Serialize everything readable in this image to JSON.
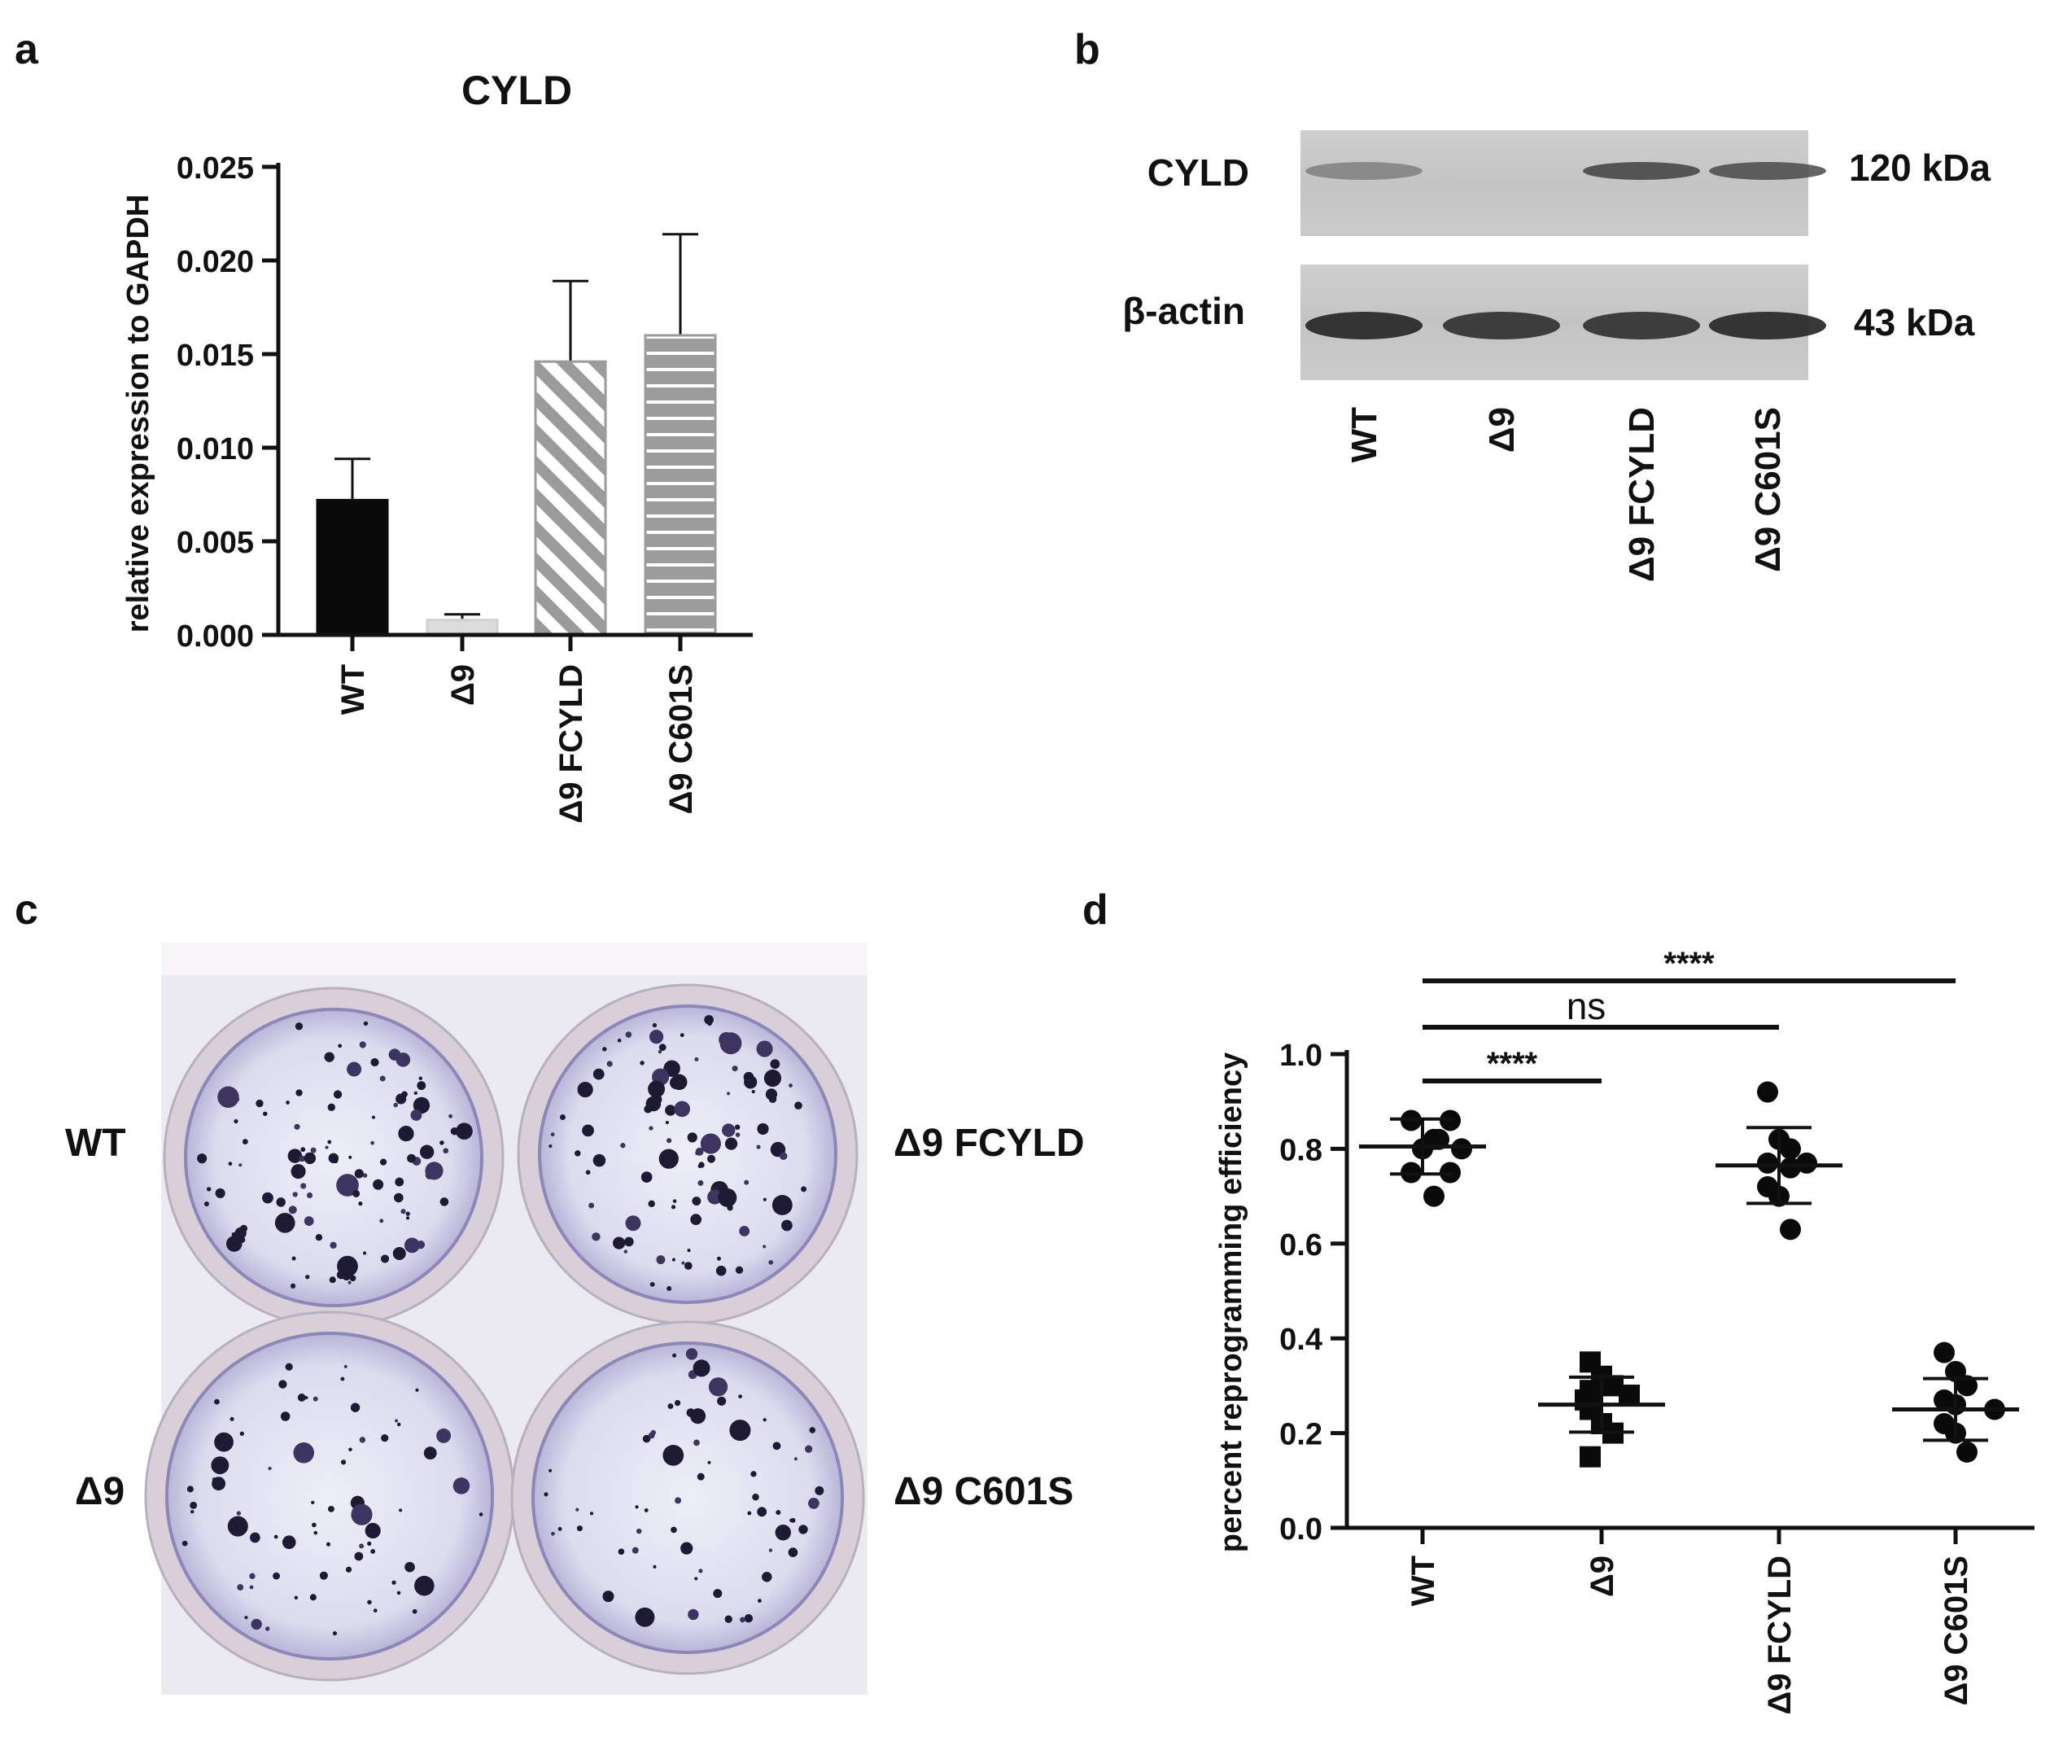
{
  "chart_data": [
    {
      "panel": "a",
      "type": "bar",
      "title": "CYLD",
      "ylabel": "relative expression to GAPDH",
      "xlabel": "",
      "categories": [
        "WT",
        "Δ9",
        "Δ9 FCYLD",
        "Δ9 C601S"
      ],
      "values": [
        0.0072,
        0.0008,
        0.0146,
        0.016
      ],
      "errors": [
        0.0022,
        0.0003,
        0.0043,
        0.0054
      ],
      "patterns": [
        "solid-black",
        "solid-lightgray",
        "diagonal-stripes",
        "horizontal-stripes"
      ],
      "ylim": [
        0,
        0.025
      ],
      "yticks": [
        "0.000",
        "0.005",
        "0.010",
        "0.015",
        "0.020",
        "0.025"
      ]
    },
    {
      "panel": "b",
      "type": "western-blot",
      "rows": [
        {
          "label": "CYLD",
          "size": "120 kDa",
          "intensity": [
            0.35,
            0.0,
            0.75,
            0.7
          ]
        },
        {
          "label": "β-actin",
          "size": "43 kDa",
          "intensity": [
            0.95,
            0.9,
            0.9,
            0.95
          ]
        }
      ],
      "lanes": [
        "WT",
        "Δ9",
        "Δ9 FCYLD",
        "Δ9 C601S"
      ]
    },
    {
      "panel": "c",
      "type": "image",
      "wells": [
        "WT",
        "Δ9 FCYLD",
        "Δ9",
        "Δ9 C601S"
      ]
    },
    {
      "panel": "d",
      "type": "scatter",
      "ylabel": "percent reprogramming efficiency",
      "xlabel": "",
      "categories": [
        "WT",
        "Δ9",
        "Δ9 FCYLD",
        "Δ9 C601S"
      ],
      "ylim": [
        0,
        1.0
      ],
      "yticks": [
        "0.0",
        "0.2",
        "0.4",
        "0.6",
        "0.8",
        "1.0"
      ],
      "groups": [
        {
          "name": "WT",
          "marker": "circle",
          "mean": 0.805,
          "sd": 0.058,
          "points": [
            0.86,
            0.86,
            0.82,
            0.82,
            0.8,
            0.8,
            0.75,
            0.75,
            0.7
          ]
        },
        {
          "name": "Δ9",
          "marker": "square",
          "mean": 0.26,
          "sd": 0.058,
          "points": [
            0.35,
            0.32,
            0.3,
            0.29,
            0.28,
            0.27,
            0.25,
            0.22,
            0.2,
            0.15
          ]
        },
        {
          "name": "Δ9 FCYLD",
          "marker": "circle",
          "mean": 0.765,
          "sd": 0.08,
          "points": [
            0.92,
            0.82,
            0.8,
            0.77,
            0.77,
            0.76,
            0.72,
            0.7,
            0.63
          ]
        },
        {
          "name": "Δ9 C601S",
          "marker": "circle",
          "mean": 0.25,
          "sd": 0.065,
          "points": [
            0.37,
            0.33,
            0.3,
            0.27,
            0.26,
            0.25,
            0.22,
            0.2,
            0.16
          ]
        }
      ],
      "significance": [
        {
          "from": "WT",
          "to": "Δ9 C601S",
          "label": "****"
        },
        {
          "from": "WT",
          "to": "Δ9 FCYLD",
          "label": "ns"
        },
        {
          "from": "WT",
          "to": "Δ9",
          "label": "****"
        }
      ]
    }
  ],
  "panels": {
    "a": "a",
    "b": "b",
    "c": "c",
    "d": "d"
  }
}
